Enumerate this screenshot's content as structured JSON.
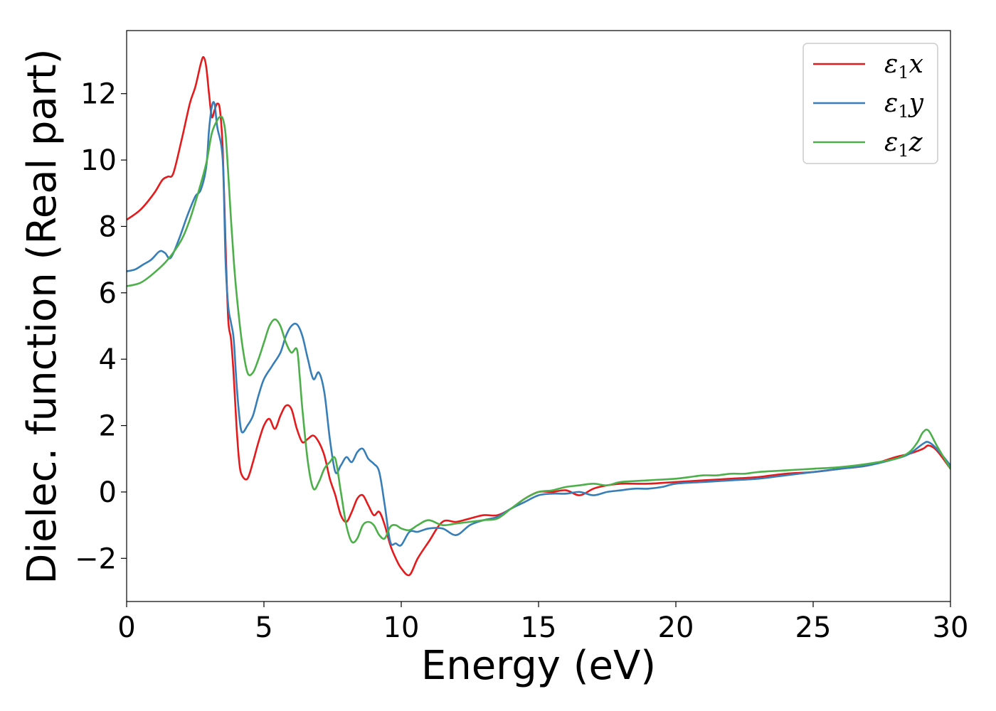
{
  "chart_data": {
    "type": "line",
    "title": "",
    "xlabel": "Energy (eV)",
    "ylabel": "Dielec. function (Real part)",
    "xlim": [
      0,
      30
    ],
    "ylim": [
      -3.3,
      13.9
    ],
    "xticks": [
      0,
      5,
      10,
      15,
      20,
      25,
      30
    ],
    "xtick_labels": [
      "0",
      "5",
      "10",
      "15",
      "20",
      "25",
      "30"
    ],
    "yticks": [
      -2,
      0,
      2,
      4,
      6,
      8,
      10,
      12
    ],
    "ytick_labels": [
      "−2",
      "0",
      "2",
      "4",
      "6",
      "8",
      "10",
      "12"
    ],
    "grid": false,
    "legend_position": "top-right",
    "series": [
      {
        "name": "ε1x",
        "legend_base": "ε",
        "legend_sub": "1",
        "legend_suffix": "x",
        "color": "#e41a1c",
        "x": [
          0,
          0.5,
          1.0,
          1.3,
          1.5,
          1.7,
          2.0,
          2.3,
          2.5,
          2.7,
          2.8,
          2.9,
          3.0,
          3.1,
          3.2,
          3.3,
          3.4,
          3.5,
          3.6,
          3.7,
          3.8,
          3.9,
          4.0,
          4.1,
          4.2,
          4.4,
          4.6,
          4.8,
          5.0,
          5.2,
          5.4,
          5.6,
          5.8,
          6.0,
          6.2,
          6.4,
          6.6,
          6.8,
          7.0,
          7.2,
          7.4,
          7.6,
          7.8,
          8.0,
          8.2,
          8.4,
          8.6,
          8.8,
          9.0,
          9.2,
          9.4,
          9.6,
          9.8,
          10.0,
          10.3,
          10.6,
          11.0,
          11.5,
          12.0,
          12.5,
          13.0,
          13.5,
          14.0,
          14.5,
          15.0,
          15.5,
          16.0,
          16.5,
          17.0,
          17.5,
          18.0,
          19.0,
          20.0,
          21.0,
          22.0,
          23.0,
          24.0,
          25.0,
          26.0,
          27.0,
          28.0,
          28.5,
          29.0,
          29.2,
          29.5,
          30.0
        ],
        "y": [
          8.2,
          8.5,
          9.0,
          9.4,
          9.5,
          9.6,
          10.6,
          11.7,
          12.2,
          12.9,
          13.1,
          12.8,
          12.0,
          11.3,
          11.5,
          11.7,
          11.5,
          10.3,
          7.5,
          5.2,
          4.6,
          3.5,
          2.0,
          0.9,
          0.5,
          0.4,
          0.9,
          1.5,
          2.0,
          2.2,
          1.9,
          2.3,
          2.6,
          2.5,
          1.9,
          1.5,
          1.6,
          1.7,
          1.5,
          1.1,
          0.4,
          -0.1,
          -0.7,
          -0.9,
          -0.6,
          -0.2,
          -0.1,
          -0.4,
          -0.7,
          -0.6,
          -1.0,
          -1.6,
          -2.0,
          -2.3,
          -2.5,
          -2.0,
          -1.5,
          -0.9,
          -0.9,
          -0.8,
          -0.7,
          -0.7,
          -0.5,
          -0.2,
          0.0,
          0.0,
          0.05,
          -0.1,
          0.1,
          0.2,
          0.25,
          0.25,
          0.3,
          0.35,
          0.4,
          0.45,
          0.55,
          0.6,
          0.7,
          0.8,
          1.05,
          1.15,
          1.3,
          1.4,
          1.25,
          0.7
        ]
      },
      {
        "name": "ε1y",
        "legend_base": "ε",
        "legend_sub": "1",
        "legend_suffix": "y",
        "color": "#377eb8",
        "x": [
          0,
          0.3,
          0.6,
          0.9,
          1.2,
          1.4,
          1.6,
          1.9,
          2.2,
          2.5,
          2.7,
          2.9,
          3.0,
          3.1,
          3.2,
          3.3,
          3.5,
          3.6,
          3.7,
          3.8,
          3.9,
          4.0,
          4.1,
          4.2,
          4.4,
          4.6,
          4.8,
          5.0,
          5.3,
          5.6,
          5.8,
          6.0,
          6.2,
          6.4,
          6.6,
          6.8,
          7.0,
          7.2,
          7.4,
          7.6,
          7.8,
          8.0,
          8.2,
          8.4,
          8.6,
          8.8,
          9.0,
          9.2,
          9.4,
          9.6,
          9.8,
          10.0,
          10.3,
          10.6,
          11.0,
          11.5,
          12.0,
          12.5,
          13.0,
          13.5,
          14.0,
          14.5,
          15.0,
          15.5,
          16.0,
          16.5,
          17.0,
          17.5,
          18.0,
          18.5,
          19.0,
          19.5,
          20.0,
          21.0,
          22.0,
          23.0,
          24.0,
          25.0,
          26.0,
          27.0,
          28.0,
          28.5,
          29.0,
          29.2,
          29.5,
          30.0
        ],
        "y": [
          6.65,
          6.7,
          6.85,
          7.0,
          7.25,
          7.2,
          7.05,
          7.6,
          8.3,
          8.9,
          9.1,
          9.8,
          10.9,
          11.6,
          11.7,
          11.0,
          10.0,
          7.0,
          5.6,
          5.1,
          4.6,
          3.3,
          2.3,
          1.8,
          2.0,
          2.3,
          2.9,
          3.4,
          3.8,
          4.2,
          4.7,
          5.0,
          5.05,
          4.7,
          4.0,
          3.4,
          3.6,
          3.0,
          1.6,
          0.6,
          0.8,
          1.05,
          0.9,
          1.2,
          1.3,
          1.0,
          0.85,
          0.6,
          -0.4,
          -1.5,
          -1.55,
          -1.6,
          -1.2,
          -1.2,
          -1.1,
          -1.1,
          -1.3,
          -1.0,
          -0.85,
          -0.75,
          -0.5,
          -0.3,
          -0.1,
          -0.05,
          -0.05,
          0.0,
          -0.1,
          0.0,
          0.05,
          0.1,
          0.1,
          0.15,
          0.25,
          0.3,
          0.35,
          0.4,
          0.5,
          0.6,
          0.7,
          0.8,
          1.0,
          1.15,
          1.45,
          1.5,
          1.3,
          0.8
        ]
      },
      {
        "name": "ε1z",
        "legend_base": "ε",
        "legend_sub": "1",
        "legend_suffix": "z",
        "color": "#4daf4a",
        "x": [
          0,
          0.5,
          1.0,
          1.5,
          2.0,
          2.3,
          2.6,
          2.9,
          3.1,
          3.3,
          3.4,
          3.5,
          3.6,
          3.7,
          3.8,
          3.9,
          4.0,
          4.2,
          4.4,
          4.6,
          4.8,
          5.0,
          5.2,
          5.4,
          5.6,
          5.8,
          6.0,
          6.2,
          6.3,
          6.4,
          6.6,
          6.8,
          7.0,
          7.2,
          7.4,
          7.6,
          7.8,
          8.0,
          8.2,
          8.4,
          8.6,
          8.8,
          9.0,
          9.2,
          9.4,
          9.6,
          9.8,
          10.0,
          10.3,
          10.6,
          11.0,
          11.5,
          12.0,
          12.5,
          13.0,
          13.5,
          14.0,
          14.5,
          15.0,
          15.5,
          16.0,
          16.5,
          17.0,
          17.5,
          18.0,
          19.0,
          20.0,
          20.5,
          21.0,
          21.5,
          22.0,
          22.5,
          23.0,
          24.0,
          25.0,
          26.0,
          27.0,
          28.0,
          28.5,
          28.8,
          29.0,
          29.2,
          29.5,
          30.0
        ],
        "y": [
          6.2,
          6.3,
          6.6,
          7.0,
          7.6,
          8.2,
          9.0,
          9.9,
          10.8,
          11.2,
          11.3,
          11.25,
          10.8,
          9.6,
          8.2,
          7.0,
          6.0,
          4.5,
          3.6,
          3.6,
          4.0,
          4.5,
          5.0,
          5.2,
          5.0,
          4.5,
          4.2,
          4.3,
          3.5,
          2.5,
          0.9,
          0.1,
          0.3,
          0.7,
          0.9,
          1.0,
          0.0,
          -1.0,
          -1.5,
          -1.4,
          -1.0,
          -0.9,
          -1.0,
          -1.3,
          -1.4,
          -1.05,
          -1.0,
          -1.1,
          -1.15,
          -1.0,
          -0.85,
          -1.0,
          -0.95,
          -0.9,
          -0.85,
          -0.8,
          -0.5,
          -0.2,
          0.0,
          0.05,
          0.15,
          0.2,
          0.25,
          0.2,
          0.3,
          0.35,
          0.4,
          0.45,
          0.5,
          0.5,
          0.55,
          0.55,
          0.6,
          0.65,
          0.7,
          0.75,
          0.85,
          1.0,
          1.2,
          1.5,
          1.8,
          1.85,
          1.4,
          0.7
        ]
      }
    ]
  }
}
